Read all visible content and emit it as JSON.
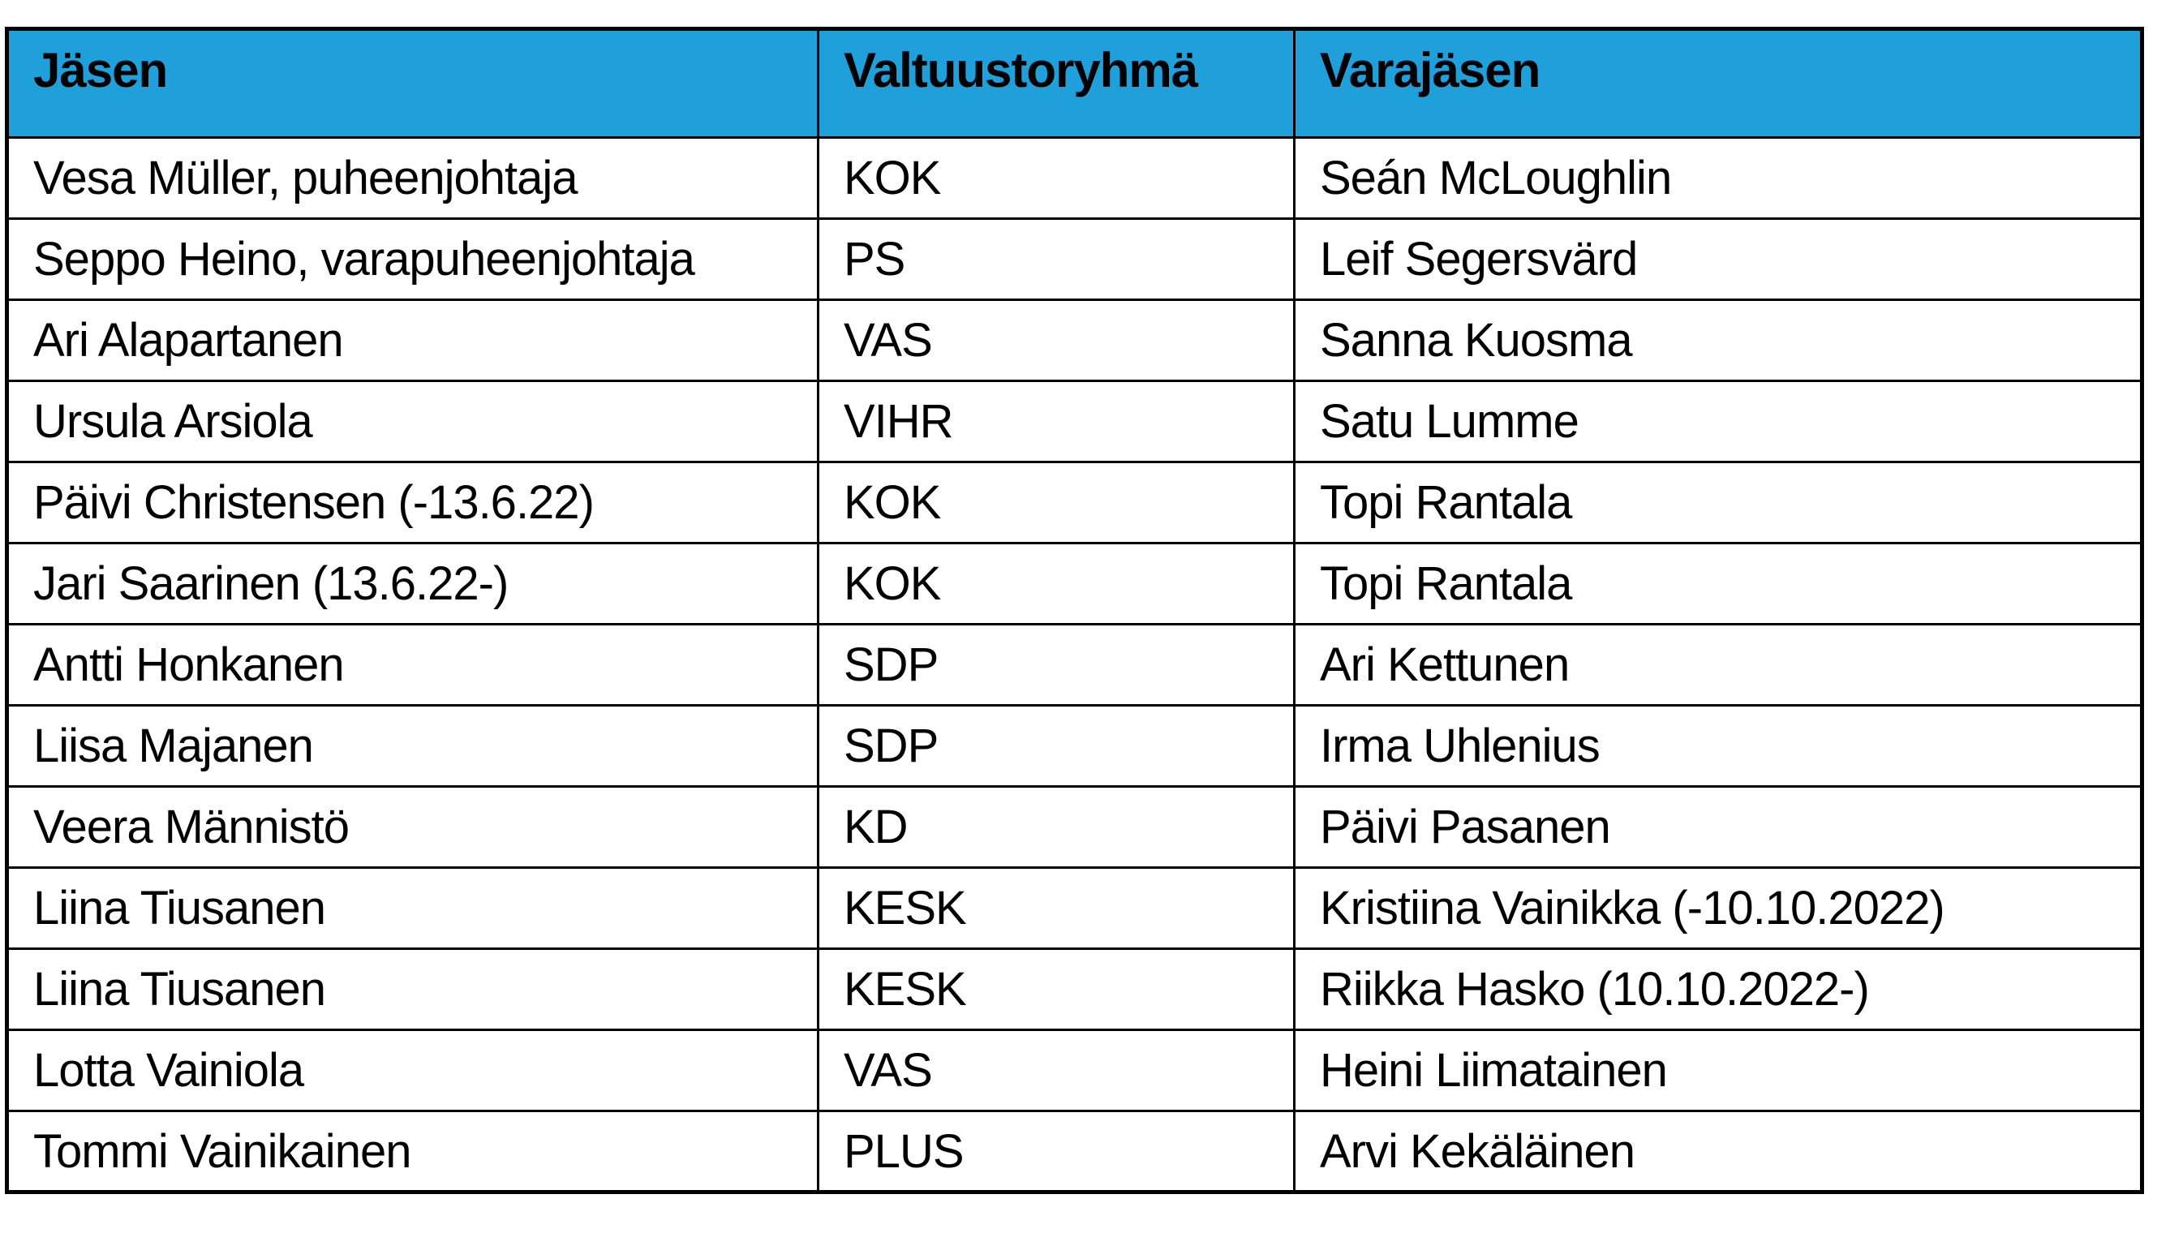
{
  "table": {
    "columns": [
      {
        "label": "Jäsen"
      },
      {
        "label": "Valtuustoryhmä"
      },
      {
        "label": "Varajäsen"
      }
    ],
    "rows": [
      [
        "Vesa Müller, puheenjohtaja",
        "KOK",
        "Seán McLoughlin"
      ],
      [
        "Seppo Heino, varapuheenjohtaja",
        "PS",
        "Leif Segersvärd"
      ],
      [
        "Ari Alapartanen",
        "VAS",
        "Sanna Kuosma"
      ],
      [
        "Ursula Arsiola",
        "VIHR",
        "Satu Lumme"
      ],
      [
        "Päivi Christensen (-13.6.22)",
        "KOK",
        "Topi Rantala"
      ],
      [
        "Jari Saarinen (13.6.22-)",
        "KOK",
        "Topi Rantala"
      ],
      [
        "Antti Honkanen",
        "SDP",
        "Ari Kettunen"
      ],
      [
        "Liisa Majanen",
        "SDP",
        "Irma Uhlenius"
      ],
      [
        "Veera Männistö",
        "KD",
        "Päivi Pasanen"
      ],
      [
        "Liina Tiusanen",
        "KESK",
        "Kristiina Vainikka (-10.10.2022)"
      ],
      [
        "Liina Tiusanen",
        "KESK",
        "Riikka Hasko (10.10.2022-)"
      ],
      [
        "Lotta Vainiola",
        "VAS",
        "Heini Liimatainen"
      ],
      [
        "Tommi Vainikainen",
        "PLUS",
        "Arvi Kekäläinen"
      ]
    ],
    "colors": {
      "header_bg": "#1FA0DA",
      "header_text": "#000000",
      "body_text": "#000000",
      "border": "#000000",
      "row_bg": "#ffffff",
      "page_bg": "#ffffff"
    }
  }
}
